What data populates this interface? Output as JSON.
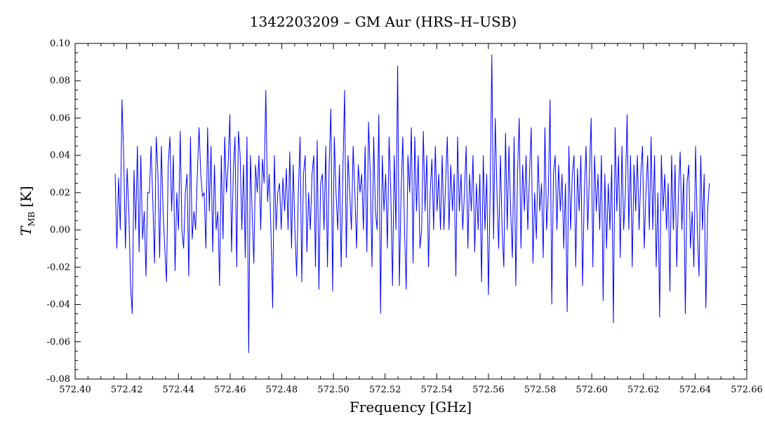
{
  "chart_data": {
    "type": "line",
    "title": "1342203209 – GM Aur (HRS–H–USB)",
    "xlabel": "Frequency [GHz]",
    "ylabel_main": "T",
    "ylabel_sub": "MB",
    "ylabel_unit": "[K]",
    "xlim": [
      572.4,
      572.66
    ],
    "ylim": [
      -0.08,
      0.1
    ],
    "x_ticks": [
      "572.40",
      "572.42",
      "572.44",
      "572.46",
      "572.48",
      "572.50",
      "572.52",
      "572.54",
      "572.56",
      "572.58",
      "572.60",
      "572.62",
      "572.64",
      "572.66"
    ],
    "y_ticks": [
      "-0.08",
      "-0.06",
      "-0.04",
      "-0.02",
      "0.00",
      "0.02",
      "0.04",
      "0.06",
      "0.08",
      "0.10"
    ],
    "x_range": [
      572.4155,
      572.6455
    ],
    "line_color": "#0000ff",
    "grid": false,
    "series": [
      {
        "values": [
          0.03,
          -0.01,
          0.028,
          0.0,
          0.07,
          0.04,
          -0.01,
          0.033,
          0.01,
          -0.03,
          -0.045,
          0.032,
          0.0,
          0.045,
          -0.012,
          0.04,
          -0.005,
          0.01,
          -0.025,
          0.02,
          0.02,
          0.045,
          0.015,
          -0.018,
          0.05,
          0.03,
          -0.015,
          0.045,
          0.01,
          -0.01,
          -0.028,
          0.035,
          0.05,
          0.01,
          0.04,
          -0.022,
          0.02,
          0.0,
          0.053,
          0.0,
          -0.01,
          0.02,
          0.03,
          -0.025,
          0.05,
          -0.005,
          0.01,
          0.0,
          0.03,
          0.055,
          0.03,
          0.018,
          0.02,
          -0.01,
          0.055,
          0.01,
          0.045,
          -0.012,
          0.035,
          0.0,
          0.01,
          -0.03,
          0.04,
          -0.005,
          0.05,
          0.02,
          0.035,
          0.062,
          -0.012,
          0.03,
          0.05,
          -0.02,
          0.053,
          0.04,
          0.0,
          0.035,
          -0.015,
          0.05,
          -0.066,
          0.04,
          0.01,
          -0.018,
          0.035,
          0.02,
          0.04,
          0.0,
          0.038,
          0.025,
          0.075,
          0.015,
          0.03,
          0.0,
          -0.042,
          0.04,
          0.0,
          0.02,
          0.025,
          0.0,
          0.028,
          0.01,
          0.033,
          0.0,
          0.042,
          -0.01,
          0.035,
          0.0,
          -0.025,
          0.02,
          0.05,
          -0.028,
          0.03,
          0.04,
          -0.012,
          0.02,
          0.0,
          0.03,
          0.04,
          -0.02,
          0.048,
          -0.032,
          0.025,
          0.03,
          0.0,
          0.045,
          -0.02,
          0.035,
          0.065,
          -0.033,
          0.05,
          0.02,
          0.0,
          0.035,
          -0.02,
          0.03,
          0.075,
          -0.015,
          0.04,
          0.02,
          0.0,
          0.045,
          0.02,
          -0.01,
          0.035,
          0.02,
          0.03,
          0.0,
          0.045,
          -0.012,
          0.058,
          0.03,
          -0.02,
          0.05,
          0.01,
          0.0,
          0.062,
          -0.045,
          0.04,
          0.01,
          0.03,
          -0.01,
          0.05,
          0.02,
          -0.03,
          0.04,
          0.0,
          0.088,
          -0.03,
          0.02,
          0.05,
          0.0,
          -0.032,
          0.04,
          0.02,
          0.055,
          -0.018,
          0.05,
          0.01,
          0.04,
          -0.01,
          0.0,
          0.053,
          0.01,
          0.04,
          -0.02,
          0.02,
          0.038,
          0.0,
          0.045,
          0.01,
          0.03,
          0.0,
          0.04,
          0.0,
          0.025,
          0.05,
          0.0,
          0.035,
          0.01,
          0.03,
          -0.025,
          0.05,
          0.01,
          0.03,
          0.0,
          0.02,
          0.045,
          -0.01,
          0.03,
          0.01,
          0.04,
          -0.012,
          0.025,
          0.0,
          0.03,
          -0.028,
          0.04,
          0.0,
          0.03,
          -0.035,
          0.02,
          0.094,
          -0.005,
          0.06,
          0.02,
          -0.01,
          0.04,
          0.0,
          -0.02,
          0.052,
          0.0,
          0.045,
          0.01,
          -0.015,
          0.05,
          -0.03,
          0.03,
          0.06,
          -0.01,
          0.035,
          0.01,
          0.04,
          0.0,
          0.03,
          0.055,
          -0.018,
          0.02,
          -0.005,
          0.04,
          0.01,
          0.025,
          -0.015,
          0.055,
          0.0,
          0.02,
          0.07,
          -0.04,
          0.03,
          0.04,
          0.0,
          0.035,
          0.01,
          0.03,
          -0.01,
          0.025,
          -0.044,
          0.045,
          0.0,
          0.03,
          0.04,
          -0.02,
          0.033,
          0.01,
          0.04,
          -0.03,
          0.02,
          0.045,
          0.0,
          0.03,
          0.06,
          -0.02,
          0.04,
          0.01,
          0.03,
          0.0,
          0.04,
          -0.038,
          0.03,
          -0.01,
          0.025,
          0.0,
          0.035,
          -0.05,
          0.055,
          0.01,
          0.04,
          -0.015,
          0.045,
          0.0,
          0.02,
          0.062,
          0.0,
          0.04,
          -0.02,
          0.035,
          0.01,
          0.04,
          0.0,
          0.03,
          0.045,
          -0.01,
          0.02,
          0.04,
          0.0,
          0.05,
          0.0,
          0.04,
          -0.02,
          0.02,
          -0.047,
          0.04,
          0.01,
          0.03,
          0.0,
          0.025,
          -0.033,
          0.04,
          0.0,
          0.035,
          -0.02,
          0.02,
          0.042,
          0.0,
          0.03,
          -0.045,
          0.025,
          0.035,
          -0.01,
          0.01,
          -0.02,
          0.045,
          0.0,
          -0.025,
          0.04,
          0.0,
          0.03,
          -0.042,
          0.01,
          0.025
        ]
      }
    ]
  }
}
